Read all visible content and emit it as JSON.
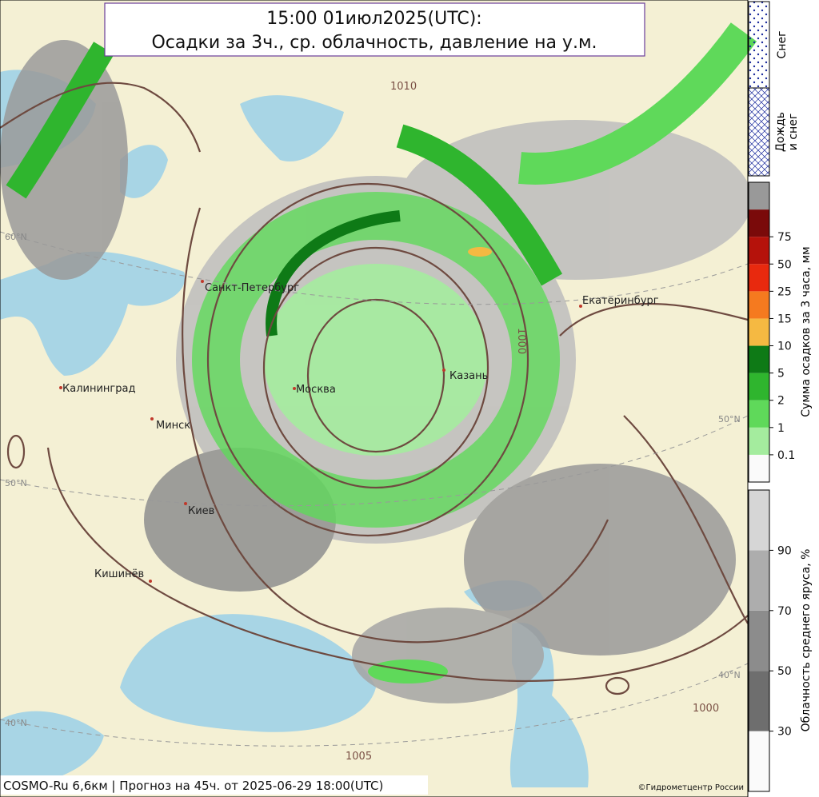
{
  "header": {
    "title": "15:00 01июл2025(UTC):",
    "subtitle": "Осадки за 3ч., ср. облачность, давление на у.м."
  },
  "map": {
    "cities": [
      "Санкт-Петербург",
      "Екатеринбург",
      "Калининград",
      "Москва",
      "Казань",
      "Минск",
      "Киев",
      "Кишинёв"
    ],
    "isobars": [
      "1010",
      "1005",
      "1000",
      "1000"
    ],
    "latitudes": [
      "60°N",
      "50°N",
      "50°N",
      "40°N",
      "40°N"
    ]
  },
  "legend": {
    "snow": "Снег",
    "rain_snow": "Дождь и снег",
    "precip": {
      "label": "Сумма осадков за 3 часа, мм",
      "ticks": [
        0.1,
        1,
        2,
        5,
        10,
        15,
        25,
        50,
        75
      ],
      "colors": [
        "#fafafa",
        "#a4ec9e",
        "#5fd95a",
        "#2fb52e",
        "#0e7a16",
        "#f5b942",
        "#f57a1f",
        "#e8290e",
        "#b5120b",
        "#7a0a0a",
        "#999999"
      ]
    },
    "cloud": {
      "label": "Облачность среднего яруса, %",
      "ticks": [
        30,
        50,
        70,
        90
      ],
      "colors": [
        "#fafafa",
        "#6e6e6e",
        "#8c8c8c",
        "#adadad",
        "#d6d6d6"
      ]
    }
  },
  "footer": {
    "model": "COSMO-Ru 6,6км | Прогноз на  45ч. от 2025-06-29 18:00(UTC)",
    "copyright": "©Гидрометцентр России"
  }
}
